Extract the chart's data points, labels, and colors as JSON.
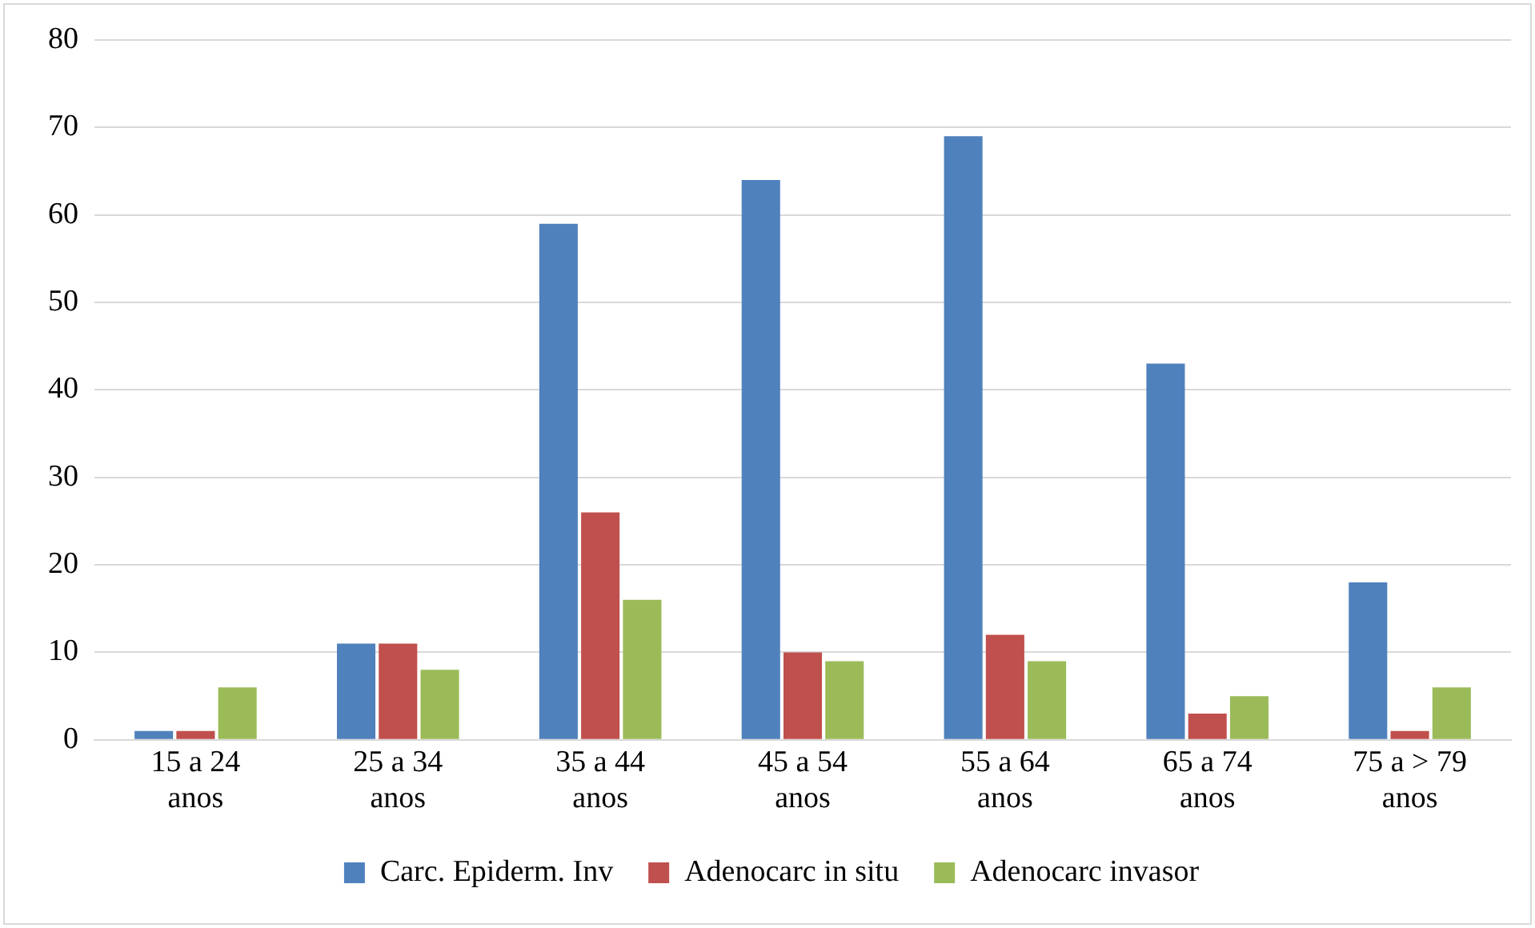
{
  "chart_data": {
    "type": "bar",
    "categories": [
      "15 a 24 anos",
      "25 a 34 anos",
      "35 a 44 anos",
      "45 a 54 anos",
      "55 a 64 anos",
      "65 a 74 anos",
      "75 a > 79 anos"
    ],
    "series": [
      {
        "name": "Carc. Epiderm. Inv",
        "color": "#4f81bd",
        "values": [
          1,
          11,
          59,
          64,
          69,
          43,
          18
        ]
      },
      {
        "name": "Adenocarc in situ",
        "color": "#c0504d",
        "values": [
          1,
          11,
          26,
          10,
          12,
          3,
          1
        ]
      },
      {
        "name": "Adenocarc invasor",
        "color": "#9bbb59",
        "values": [
          6,
          8,
          16,
          9,
          9,
          5,
          6
        ]
      }
    ],
    "ylim": [
      0,
      80
    ],
    "yticks": [
      0,
      10,
      20,
      30,
      40,
      50,
      60,
      70,
      80
    ],
    "grid": "y",
    "legend": "bottom"
  }
}
